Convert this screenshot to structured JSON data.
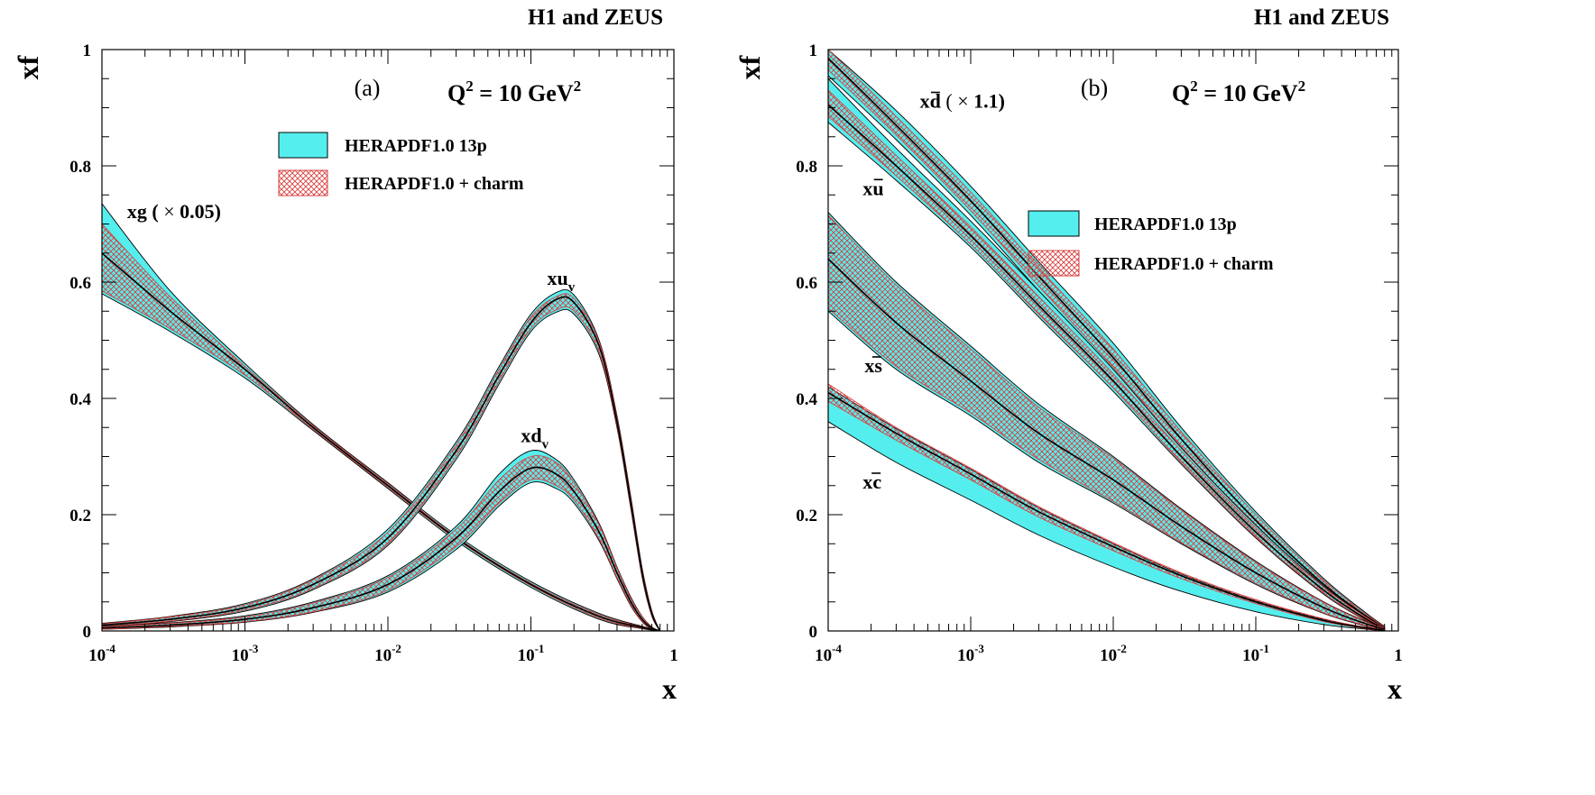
{
  "figure_header": "H1 and ZEUS",
  "hatch_colors": {
    "band_a": "#55eeee",
    "band_b_fill": "#ffffff",
    "band_b_hatch": "#d94040",
    "line": "#000000"
  },
  "chart_data": [
    {
      "id": "a",
      "type": "area",
      "panel_label": "(a)",
      "header": "H1 and ZEUS",
      "q2_label": {
        "prefix": "Q",
        "sup1": "2",
        "mid": " = 10 GeV",
        "sup2": "2"
      },
      "xlabel": "x",
      "ylabel": "xf",
      "xscale": "log",
      "xlim": [
        0.0001,
        1
      ],
      "ylim": [
        0,
        1
      ],
      "xticks": [
        {
          "value": 0.0001,
          "base": "10",
          "exp": "-4"
        },
        {
          "value": 0.001,
          "base": "10",
          "exp": "-3"
        },
        {
          "value": 0.01,
          "base": "10",
          "exp": "-2"
        },
        {
          "value": 0.1,
          "base": "10",
          "exp": "-1"
        },
        {
          "value": 1,
          "base": "1",
          "exp": ""
        }
      ],
      "yticks": [
        {
          "value": 0,
          "label": "0"
        },
        {
          "value": 0.2,
          "label": "0.2"
        },
        {
          "value": 0.4,
          "label": "0.4"
        },
        {
          "value": 0.6,
          "label": "0.6"
        },
        {
          "value": 0.8,
          "label": "0.8"
        },
        {
          "value": 1,
          "label": "1"
        }
      ],
      "legend": {
        "position": "top-center",
        "entries": [
          {
            "label": "HERAPDF1.0 13p",
            "style": "solid-cyan"
          },
          {
            "label": "HERAPDF1.0 + charm",
            "style": "red-hatch"
          }
        ]
      },
      "series": [
        {
          "name": "xg (× 0.05)",
          "annotation": {
            "main": "xg (",
            "times": "×",
            "rest": " 0.05)",
            "x": 0.00015,
            "y": 0.71
          },
          "x": [
            0.0001,
            0.0003,
            0.001,
            0.003,
            0.01,
            0.03,
            0.1,
            0.3,
            0.6,
            0.8
          ],
          "central": [
            0.65,
            0.55,
            0.45,
            0.35,
            0.25,
            0.16,
            0.08,
            0.025,
            0.006,
            0.0
          ],
          "band_a_upper": [
            0.735,
            0.585,
            0.46,
            0.355,
            0.255,
            0.165,
            0.085,
            0.03,
            0.008,
            0.0
          ],
          "band_a_lower": [
            0.58,
            0.515,
            0.435,
            0.345,
            0.245,
            0.155,
            0.075,
            0.02,
            0.004,
            0.0
          ],
          "band_b_upper": [
            0.7,
            0.575,
            0.455,
            0.353,
            0.253,
            0.162,
            0.082,
            0.028,
            0.007,
            0.0
          ],
          "band_b_lower": [
            0.585,
            0.52,
            0.44,
            0.347,
            0.247,
            0.158,
            0.078,
            0.022,
            0.005,
            0.0
          ]
        },
        {
          "name": "xu_v",
          "annotation": {
            "main": "xu",
            "sub": "v",
            "x": 0.13,
            "y": 0.595
          },
          "x": [
            0.0001,
            0.0003,
            0.001,
            0.003,
            0.01,
            0.03,
            0.06,
            0.1,
            0.15,
            0.2,
            0.3,
            0.4,
            0.5,
            0.6,
            0.7,
            0.8
          ],
          "central": [
            0.01,
            0.02,
            0.04,
            0.08,
            0.16,
            0.31,
            0.44,
            0.53,
            0.57,
            0.565,
            0.49,
            0.36,
            0.22,
            0.1,
            0.03,
            0.0
          ],
          "band_a_upper": [
            0.013,
            0.025,
            0.047,
            0.09,
            0.175,
            0.325,
            0.455,
            0.545,
            0.582,
            0.578,
            0.5,
            0.37,
            0.23,
            0.108,
            0.035,
            0.0
          ],
          "band_a_lower": [
            0.007,
            0.016,
            0.034,
            0.071,
            0.147,
            0.295,
            0.425,
            0.515,
            0.548,
            0.545,
            0.475,
            0.35,
            0.21,
            0.092,
            0.026,
            0.0
          ],
          "band_b_upper": [
            0.012,
            0.024,
            0.045,
            0.088,
            0.17,
            0.32,
            0.45,
            0.54,
            0.575,
            0.572,
            0.497,
            0.366,
            0.226,
            0.105,
            0.033,
            0.0
          ],
          "band_b_lower": [
            0.008,
            0.017,
            0.036,
            0.073,
            0.15,
            0.3,
            0.43,
            0.52,
            0.552,
            0.55,
            0.48,
            0.354,
            0.214,
            0.095,
            0.027,
            0.0
          ]
        },
        {
          "name": "xd_v",
          "annotation": {
            "main": "xd",
            "sub": "v",
            "x": 0.085,
            "y": 0.325
          },
          "x": [
            0.0001,
            0.0003,
            0.001,
            0.003,
            0.01,
            0.03,
            0.06,
            0.1,
            0.15,
            0.2,
            0.3,
            0.4,
            0.5,
            0.6,
            0.7,
            0.8
          ],
          "central": [
            0.005,
            0.01,
            0.02,
            0.04,
            0.08,
            0.16,
            0.24,
            0.28,
            0.27,
            0.24,
            0.17,
            0.1,
            0.05,
            0.02,
            0.005,
            0.0
          ],
          "band_a_upper": [
            0.008,
            0.014,
            0.026,
            0.05,
            0.095,
            0.18,
            0.27,
            0.31,
            0.295,
            0.26,
            0.185,
            0.11,
            0.058,
            0.025,
            0.007,
            0.0
          ],
          "band_a_lower": [
            0.003,
            0.007,
            0.015,
            0.032,
            0.067,
            0.14,
            0.215,
            0.255,
            0.245,
            0.22,
            0.155,
            0.09,
            0.043,
            0.016,
            0.003,
            0.0
          ],
          "band_b_upper": [
            0.007,
            0.013,
            0.024,
            0.048,
            0.092,
            0.175,
            0.26,
            0.3,
            0.29,
            0.255,
            0.182,
            0.108,
            0.056,
            0.024,
            0.006,
            0.0
          ],
          "band_b_lower": [
            0.003,
            0.008,
            0.016,
            0.033,
            0.07,
            0.145,
            0.22,
            0.26,
            0.25,
            0.225,
            0.158,
            0.092,
            0.045,
            0.017,
            0.004,
            0.0
          ]
        }
      ]
    },
    {
      "id": "b",
      "type": "area",
      "panel_label": "(b)",
      "header": "H1 and ZEUS",
      "q2_label": {
        "prefix": "Q",
        "sup1": "2",
        "mid": " = 10 GeV",
        "sup2": "2"
      },
      "xlabel": "x",
      "ylabel": "xf",
      "xscale": "log",
      "xlim": [
        0.0001,
        1
      ],
      "ylim": [
        0,
        1
      ],
      "xticks": [
        {
          "value": 0.0001,
          "base": "10",
          "exp": "-4"
        },
        {
          "value": 0.001,
          "base": "10",
          "exp": "-3"
        },
        {
          "value": 0.01,
          "base": "10",
          "exp": "-2"
        },
        {
          "value": 0.1,
          "base": "10",
          "exp": "-1"
        },
        {
          "value": 1,
          "base": "1",
          "exp": ""
        }
      ],
      "yticks": [
        {
          "value": 0,
          "label": "0"
        },
        {
          "value": 0.2,
          "label": "0.2"
        },
        {
          "value": 0.4,
          "label": "0.4"
        },
        {
          "value": 0.6,
          "label": "0.6"
        },
        {
          "value": 0.8,
          "label": "0.8"
        },
        {
          "value": 1,
          "label": "1"
        }
      ],
      "legend": {
        "position": "center-right",
        "entries": [
          {
            "label": "HERAPDF1.0 13p",
            "style": "solid-cyan"
          },
          {
            "label": "HERAPDF1.0 + charm",
            "style": "red-hatch"
          }
        ]
      },
      "series": [
        {
          "name": "xd̄ (× 1.1)",
          "annotation": {
            "main": "xd",
            "bar": true,
            "times": "×",
            "rest": " 1.1)",
            "open": " (",
            "x": 0.00044,
            "y": 0.9
          },
          "x": [
            0.0001,
            0.0003,
            0.001,
            0.003,
            0.01,
            0.03,
            0.1,
            0.3,
            0.6,
            0.8
          ],
          "central": [
            0.985,
            0.87,
            0.74,
            0.61,
            0.47,
            0.33,
            0.19,
            0.08,
            0.025,
            0.005
          ],
          "band_a_upper": [
            1.0,
            0.895,
            0.765,
            0.635,
            0.495,
            0.35,
            0.205,
            0.09,
            0.03,
            0.008
          ],
          "band_a_lower": [
            0.955,
            0.845,
            0.715,
            0.585,
            0.445,
            0.31,
            0.175,
            0.07,
            0.02,
            0.003
          ],
          "band_b_upper": [
            1.0,
            0.885,
            0.755,
            0.625,
            0.485,
            0.343,
            0.2,
            0.087,
            0.028,
            0.007
          ],
          "band_b_lower": [
            0.965,
            0.853,
            0.723,
            0.593,
            0.453,
            0.317,
            0.18,
            0.073,
            0.022,
            0.004
          ]
        },
        {
          "name": "xū",
          "annotation": {
            "main": "xu",
            "bar": true,
            "x": 0.000175,
            "y": 0.75
          },
          "x": [
            0.0001,
            0.0003,
            0.001,
            0.003,
            0.01,
            0.03,
            0.1,
            0.3,
            0.6,
            0.8
          ],
          "central": [
            0.905,
            0.8,
            0.68,
            0.56,
            0.43,
            0.3,
            0.17,
            0.07,
            0.02,
            0.004
          ],
          "band_a_upper": [
            0.95,
            0.83,
            0.705,
            0.585,
            0.45,
            0.315,
            0.182,
            0.077,
            0.024,
            0.006
          ],
          "band_a_lower": [
            0.875,
            0.775,
            0.66,
            0.54,
            0.412,
            0.287,
            0.16,
            0.063,
            0.017,
            0.002
          ],
          "band_b_upper": [
            0.93,
            0.818,
            0.695,
            0.575,
            0.442,
            0.31,
            0.178,
            0.075,
            0.023,
            0.005
          ],
          "band_b_lower": [
            0.885,
            0.783,
            0.665,
            0.545,
            0.418,
            0.29,
            0.162,
            0.065,
            0.018,
            0.003
          ]
        },
        {
          "name": "xs̄",
          "annotation": {
            "main": "xs",
            "bar": true,
            "x": 0.00018,
            "y": 0.445
          },
          "x": [
            0.0001,
            0.0003,
            0.001,
            0.003,
            0.01,
            0.03,
            0.1,
            0.3,
            0.6,
            0.8
          ],
          "central": [
            0.64,
            0.53,
            0.43,
            0.34,
            0.26,
            0.18,
            0.1,
            0.04,
            0.012,
            0.003
          ],
          "band_a_upper": [
            0.72,
            0.6,
            0.49,
            0.39,
            0.3,
            0.21,
            0.12,
            0.05,
            0.016,
            0.005
          ],
          "band_a_lower": [
            0.55,
            0.45,
            0.37,
            0.29,
            0.22,
            0.15,
            0.08,
            0.03,
            0.008,
            0.001
          ],
          "band_b_upper": [
            0.715,
            0.595,
            0.485,
            0.385,
            0.297,
            0.208,
            0.118,
            0.049,
            0.015,
            0.005
          ],
          "band_b_lower": [
            0.555,
            0.455,
            0.375,
            0.295,
            0.223,
            0.152,
            0.082,
            0.031,
            0.009,
            0.001
          ]
        },
        {
          "name": "xc̄",
          "annotation": {
            "main": "xc",
            "bar": true,
            "x": 0.000175,
            "y": 0.245
          },
          "x": [
            0.0001,
            0.0003,
            0.001,
            0.003,
            0.01,
            0.03,
            0.1,
            0.3,
            0.6,
            0.8
          ],
          "central": [
            0.41,
            0.34,
            0.27,
            0.205,
            0.145,
            0.095,
            0.05,
            0.018,
            0.005,
            0.001
          ],
          "band_a_upper": [
            0.42,
            0.348,
            0.278,
            0.212,
            0.15,
            0.098,
            0.052,
            0.02,
            0.006,
            0.002
          ],
          "band_a_lower": [
            0.36,
            0.29,
            0.225,
            0.165,
            0.11,
            0.068,
            0.033,
            0.011,
            0.003,
            0.0
          ],
          "band_b_upper": [
            0.425,
            0.35,
            0.28,
            0.214,
            0.152,
            0.1,
            0.054,
            0.021,
            0.006,
            0.002
          ],
          "band_b_lower": [
            0.395,
            0.328,
            0.26,
            0.196,
            0.138,
            0.09,
            0.047,
            0.016,
            0.004,
            0.0
          ]
        }
      ]
    }
  ]
}
